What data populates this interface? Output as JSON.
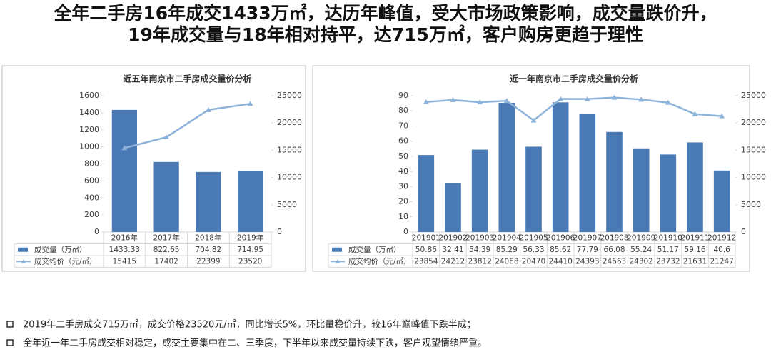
{
  "header": {
    "title_lines": [
      "全年二手房16年成交1433万㎡，达历年峰值，受大市场政策影响，成交量跌价升，",
      "19年成交量与18年相对持平，达715万㎡，客户购房更趋于理性"
    ]
  },
  "chart_data": [
    {
      "type": "bar-line",
      "title": "近五年南京市二手房成交量价分析",
      "categories": [
        "2016年",
        "2017年",
        "2018年",
        "2019年"
      ],
      "series": [
        {
          "name": "成交量（万㎡）",
          "color": "#4a7ab5",
          "type": "bar",
          "values": [
            1433.33,
            822.65,
            704.82,
            714.95
          ]
        },
        {
          "name": "成交均价（元/㎡）",
          "color": "#8db3db",
          "type": "line",
          "axis": "y2",
          "values": [
            15415,
            17402,
            22399,
            23520
          ]
        }
      ],
      "ylim": [
        0,
        1600
      ],
      "yticks": [
        0,
        200,
        400,
        600,
        800,
        1000,
        1200,
        1400,
        1600
      ],
      "y2lim": [
        0,
        25000
      ],
      "y2ticks": [
        0,
        5000,
        10000,
        15000,
        20000,
        25000
      ]
    },
    {
      "type": "bar-line",
      "title": "近一年南京市二手房成交量价分析",
      "categories": [
        "201901",
        "201902",
        "201903",
        "201904",
        "201905",
        "201906",
        "201907",
        "201908",
        "201909",
        "201910",
        "201911",
        "201912"
      ],
      "series": [
        {
          "name": "成交量（万㎡）",
          "color": "#4a7ab5",
          "type": "bar",
          "values": [
            50.86,
            32.41,
            54.39,
            85.29,
            56.33,
            85.62,
            77.79,
            66.08,
            55.24,
            51.17,
            59.16,
            40.6
          ]
        },
        {
          "name": "成交均价（元/㎡）",
          "color": "#8db3db",
          "type": "line",
          "axis": "y2",
          "values": [
            23854,
            24212,
            23812,
            24068,
            20470,
            24410,
            24393,
            24663,
            24302,
            23732,
            21631,
            21247
          ]
        }
      ],
      "ylim": [
        0,
        90
      ],
      "yticks": [
        0,
        10,
        20,
        30,
        40,
        50,
        60,
        70,
        80,
        90
      ],
      "y2lim": [
        0,
        25000
      ],
      "y2ticks": [
        0,
        5000,
        10000,
        15000,
        20000,
        25000
      ]
    }
  ],
  "notes": [
    "2019年二手房成交715万㎡，成交价格23520元/㎡，同比增长5%，环比量稳价升，较16年巅峰值下跌半成；",
    "全年近一年二手房成交相对稳定，成交主要集中在二、三季度，下半年以来成交量持续下跌，客户观望情绪严重。"
  ]
}
